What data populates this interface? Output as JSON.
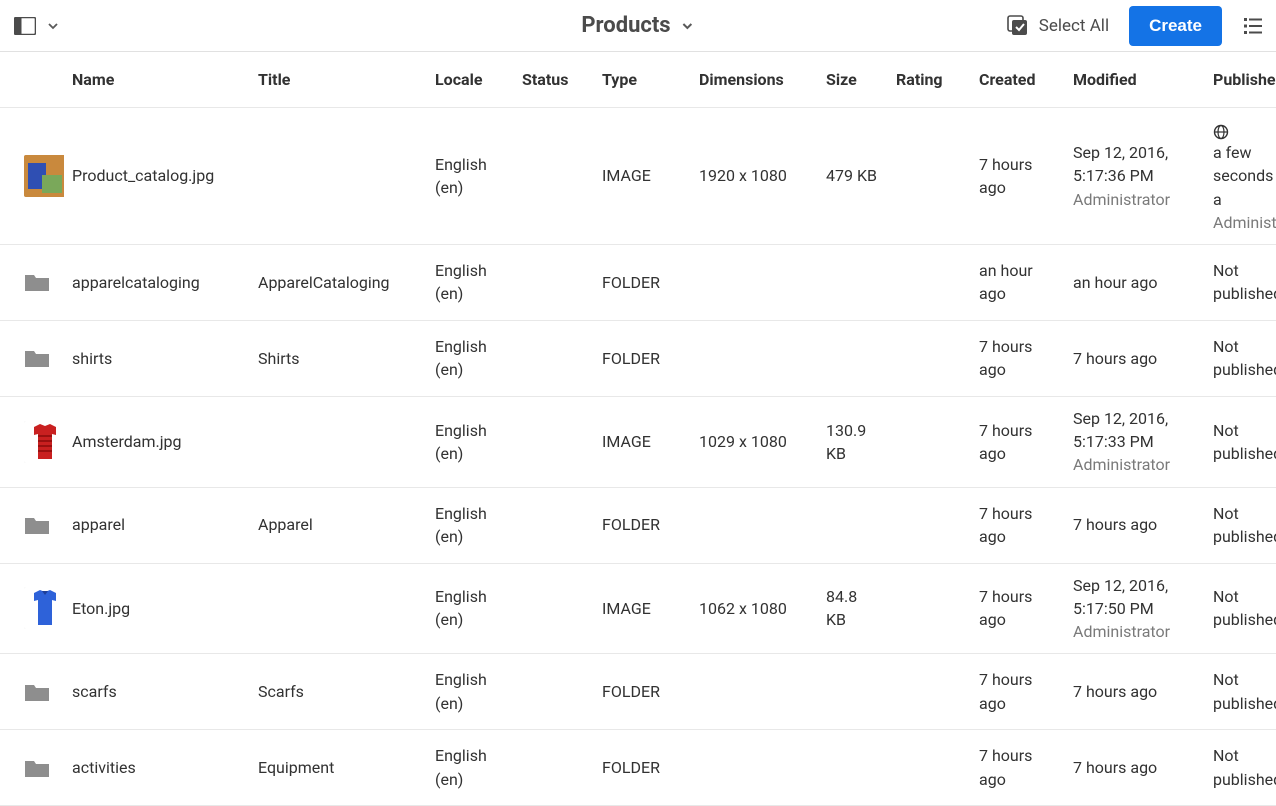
{
  "colors": {
    "accent": "#1473e6",
    "text": "#323232",
    "subtext": "#7a7a7a",
    "border": "#e8e8e8",
    "bg": "#ffffff",
    "folder": "#8e8e8e",
    "thumb_catalog": {
      "bg": "#c9893d",
      "s1": "#2f4fb3",
      "s2": "#7aa85a"
    },
    "thumb_amsterdam": {
      "shirt": "#c92020",
      "bg": "#ffffff"
    },
    "thumb_eton": {
      "shirt": "#2e62d9",
      "bg": "#ffffff"
    }
  },
  "header": {
    "title": "Products",
    "select_all_label": "Select All",
    "create_label": "Create"
  },
  "columns": {
    "name": "Name",
    "title": "Title",
    "locale": "Locale",
    "status": "Status",
    "type": "Type",
    "dimensions": "Dimensions",
    "size": "Size",
    "rating": "Rating",
    "created": "Created",
    "modified": "Modified",
    "published": "Published"
  },
  "rows": [
    {
      "thumb": "catalog",
      "name": "Product_catalog.jpg",
      "title": "",
      "locale": "English (en)",
      "status": "",
      "type": "IMAGE",
      "dimensions": "1920 x 1080",
      "size": "479 KB",
      "rating": "",
      "created": "7 hours ago",
      "modified": "Sep 12, 2016, 5:17:36 PM",
      "modified_by": "Administrator",
      "published_icon": "globe",
      "published": "a few seconds a",
      "published_by": "Administr"
    },
    {
      "thumb": "folder",
      "name": "apparelcataloging",
      "title": "ApparelCataloging",
      "locale": "English (en)",
      "status": "",
      "type": "FOLDER",
      "dimensions": "",
      "size": "",
      "rating": "",
      "created": "an hour ago",
      "modified": "an hour ago",
      "modified_by": "",
      "published": "Not published",
      "published_by": ""
    },
    {
      "thumb": "folder",
      "name": "shirts",
      "title": "Shirts",
      "locale": "English (en)",
      "status": "",
      "type": "FOLDER",
      "dimensions": "",
      "size": "",
      "rating": "",
      "created": "7 hours ago",
      "modified": "7 hours ago",
      "modified_by": "",
      "published": "Not published",
      "published_by": ""
    },
    {
      "thumb": "amsterdam",
      "name": "Amsterdam.jpg",
      "title": "",
      "locale": "English (en)",
      "status": "",
      "type": "IMAGE",
      "dimensions": "1029 x 1080",
      "size": "130.9 KB",
      "rating": "",
      "created": "7 hours ago",
      "modified": "Sep 12, 2016, 5:17:33 PM",
      "modified_by": "Administrator",
      "published": "Not published",
      "published_by": ""
    },
    {
      "thumb": "folder",
      "name": "apparel",
      "title": "Apparel",
      "locale": "English (en)",
      "status": "",
      "type": "FOLDER",
      "dimensions": "",
      "size": "",
      "rating": "",
      "created": "7 hours ago",
      "modified": "7 hours ago",
      "modified_by": "",
      "published": "Not published",
      "published_by": ""
    },
    {
      "thumb": "eton",
      "name": "Eton.jpg",
      "title": "",
      "locale": "English (en)",
      "status": "",
      "type": "IMAGE",
      "dimensions": "1062 x 1080",
      "size": "84.8 KB",
      "rating": "",
      "created": "7 hours ago",
      "modified": "Sep 12, 2016, 5:17:50 PM",
      "modified_by": "Administrator",
      "published": "Not published",
      "published_by": ""
    },
    {
      "thumb": "folder",
      "name": "scarfs",
      "title": "Scarfs",
      "locale": "English (en)",
      "status": "",
      "type": "FOLDER",
      "dimensions": "",
      "size": "",
      "rating": "",
      "created": "7 hours ago",
      "modified": "7 hours ago",
      "modified_by": "",
      "published": "Not published",
      "published_by": ""
    },
    {
      "thumb": "folder",
      "name": "activities",
      "title": "Equipment",
      "locale": "English (en)",
      "status": "",
      "type": "FOLDER",
      "dimensions": "",
      "size": "",
      "rating": "",
      "created": "7 hours ago",
      "modified": "7 hours ago",
      "modified_by": "",
      "published": "Not published",
      "published_by": ""
    }
  ]
}
